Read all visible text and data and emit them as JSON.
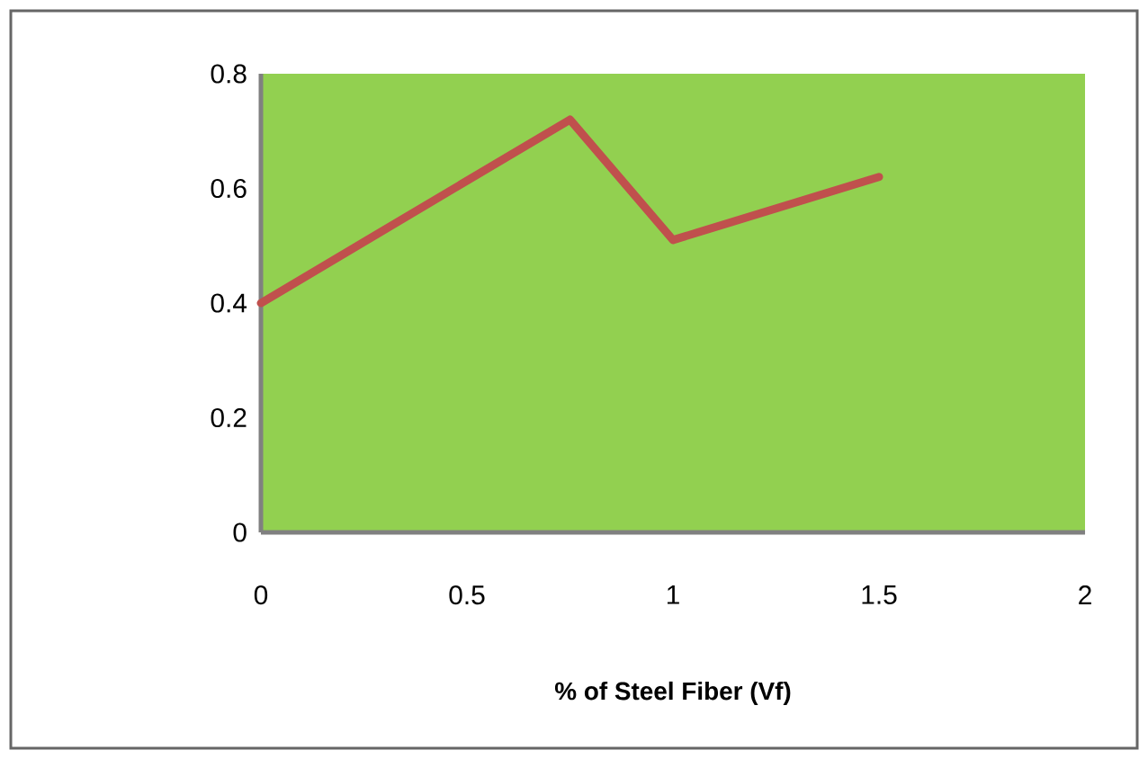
{
  "chart_data": {
    "type": "line",
    "xlabel": "% of Steel Fiber (Vf)",
    "x": [
      0,
      0.75,
      1,
      1.5
    ],
    "series": [
      {
        "color": "#c0504d",
        "values": [
          0.4,
          0.72,
          0.51,
          0.62
        ]
      }
    ],
    "xlim": [
      0,
      2
    ],
    "ylim": [
      0,
      0.8
    ],
    "xticks": [
      0,
      0.5,
      1,
      1.5,
      2
    ],
    "yticks": [
      0,
      0.2,
      0.4,
      0.6,
      0.8
    ],
    "grid": false,
    "marker": "none",
    "line_style": "solid"
  }
}
